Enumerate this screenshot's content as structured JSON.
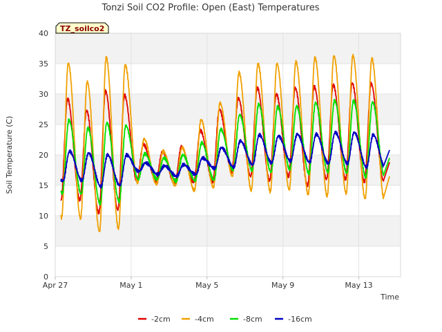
{
  "chart_data": {
    "type": "line",
    "title": "Tonzi Soil CO2 Profile: Open (East) Temperatures",
    "xlabel": "Time",
    "ylabel": "Soil Temperature (C)",
    "station_label": "TZ_soilco2",
    "ylim": [
      0,
      40
    ],
    "yticks": [
      0,
      5,
      10,
      15,
      20,
      25,
      30,
      35,
      40
    ],
    "xlim_days": [
      0,
      18.2
    ],
    "xticks": [
      {
        "day": 0,
        "label": "Apr 27"
      },
      {
        "day": 4,
        "label": "May 1"
      },
      {
        "day": 8,
        "label": "May 5"
      },
      {
        "day": 12,
        "label": "May 9"
      },
      {
        "day": 16,
        "label": "May 13"
      }
    ],
    "legend_position": "bottom",
    "grid": true,
    "series": [
      {
        "name": "-2cm",
        "color": "#e00000",
        "daily_min": [
          12.5,
          12.6,
          10.5,
          11.0,
          15.8,
          15.8,
          15.3,
          15.5,
          15.6,
          17.3,
          16.5,
          15.8,
          16.5,
          15.0,
          16.0,
          16.0,
          15.6,
          15.8
        ],
        "daily_max": [
          29.2,
          27.3,
          30.5,
          29.8,
          21.7,
          20.5,
          21.3,
          24.0,
          27.5,
          29.3,
          31.0,
          30.0,
          31.0,
          31.2,
          31.5,
          31.8,
          31.7,
          31.0
        ],
        "end_value": 18.8
      },
      {
        "name": "-4cm",
        "color": "#f0a000",
        "daily_min": [
          9.7,
          9.6,
          7.4,
          7.9,
          15.5,
          15.2,
          15.0,
          14.2,
          14.7,
          16.5,
          14.2,
          14.0,
          14.3,
          13.5,
          13.3,
          13.7,
          12.8,
          12.8
        ],
        "daily_max": [
          35.1,
          32.0,
          36.0,
          34.8,
          22.6,
          20.6,
          21.2,
          25.8,
          28.5,
          33.5,
          35.0,
          35.0,
          35.3,
          36.0,
          36.3,
          36.3,
          35.8,
          34.9
        ],
        "end_value": 16.5
      },
      {
        "name": "-8cm",
        "color": "#00e000",
        "daily_min": [
          13.7,
          13.6,
          12.0,
          12.4,
          16.0,
          16.0,
          15.7,
          15.8,
          15.9,
          17.6,
          17.5,
          17.2,
          17.6,
          17.0,
          17.2,
          17.0,
          16.4,
          16.3
        ],
        "daily_max": [
          25.7,
          24.4,
          25.3,
          24.8,
          20.2,
          19.5,
          20.0,
          22.0,
          24.2,
          26.6,
          28.3,
          27.9,
          28.0,
          28.6,
          28.9,
          28.9,
          28.7,
          27.8
        ],
        "end_value": 19.5
      },
      {
        "name": "-16cm",
        "color": "#0000c0",
        "daily_min": [
          15.7,
          15.8,
          14.8,
          15.0,
          17.3,
          16.8,
          16.5,
          16.8,
          17.8,
          18.0,
          18.4,
          18.7,
          19.0,
          18.8,
          18.6,
          18.6,
          18.0,
          17.8
        ],
        "daily_max": [
          20.6,
          20.3,
          20.0,
          20.0,
          18.7,
          18.2,
          18.4,
          19.5,
          21.2,
          22.3,
          23.3,
          23.1,
          23.4,
          23.4,
          23.7,
          23.7,
          23.3,
          22.7
        ],
        "end_value": 20.8
      }
    ]
  }
}
